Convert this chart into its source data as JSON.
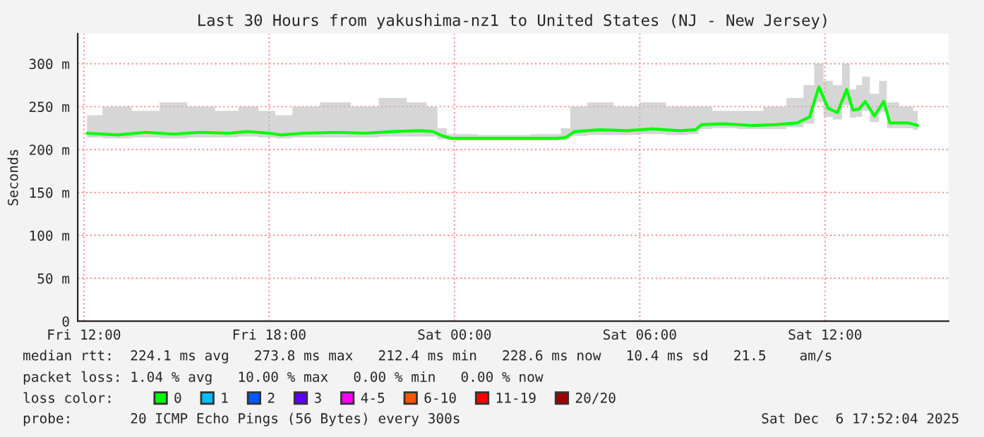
{
  "chart_data": {
    "type": "line",
    "title": "Last 30 Hours from yakushima-nz1 to United States (NJ - New Jersey)",
    "ylabel": "Seconds",
    "x": [
      "2025-12-05T12:06",
      "2025-12-05T13:06",
      "2025-12-05T14:00",
      "2025-12-05T14:54",
      "2025-12-05T15:48",
      "2025-12-05T16:42",
      "2025-12-05T17:18",
      "2025-12-05T18:00",
      "2025-12-05T18:24",
      "2025-12-05T19:06",
      "2025-12-05T20:12",
      "2025-12-05T21:06",
      "2025-12-05T22:00",
      "2025-12-05T22:54",
      "2025-12-05T23:18",
      "2025-12-05T23:36",
      "2025-12-05T23:54",
      "2025-12-06T01:36",
      "2025-12-06T03:18",
      "2025-12-06T03:36",
      "2025-12-06T03:54",
      "2025-12-06T04:42",
      "2025-12-06T05:36",
      "2025-12-06T06:24",
      "2025-12-06T07:18",
      "2025-12-06T07:48",
      "2025-12-06T08:00",
      "2025-12-06T08:42",
      "2025-12-06T09:36",
      "2025-12-06T10:24",
      "2025-12-06T11:06",
      "2025-12-06T11:30",
      "2025-12-06T11:48",
      "2025-12-06T12:06",
      "2025-12-06T12:24",
      "2025-12-06T12:42",
      "2025-12-06T12:54",
      "2025-12-06T13:06",
      "2025-12-06T13:18",
      "2025-12-06T13:36",
      "2025-12-06T13:54",
      "2025-12-06T14:06",
      "2025-12-06T14:42",
      "2025-12-06T15:00"
    ],
    "series": [
      {
        "name": "0",
        "color": "#00ff00",
        "values": [
          219,
          217,
          220,
          218,
          220,
          219,
          221,
          219,
          217,
          219,
          220,
          219,
          221,
          222,
          221,
          216,
          213,
          213,
          213,
          214,
          221,
          223,
          222,
          224,
          222,
          223,
          229,
          230,
          228,
          229,
          231,
          238,
          273,
          248,
          243,
          270,
          246,
          247,
          256,
          239,
          256,
          231,
          231,
          228
        ],
        "lower": [
          214,
          213,
          214,
          213,
          214,
          214,
          215,
          214,
          213,
          214,
          214,
          214,
          215,
          215,
          215,
          212,
          211,
          211,
          211,
          212,
          216,
          217,
          217,
          218,
          217,
          218,
          224,
          225,
          224,
          224,
          226,
          230,
          255,
          238,
          235,
          252,
          237,
          238,
          245,
          232,
          244,
          225,
          225,
          223
        ],
        "upper": [
          240,
          250,
          245,
          255,
          250,
          245,
          250,
          245,
          240,
          250,
          255,
          250,
          260,
          255,
          250,
          225,
          218,
          217,
          218,
          225,
          250,
          255,
          250,
          255,
          250,
          250,
          250,
          245,
          245,
          250,
          260,
          275,
          300,
          280,
          275,
          300,
          270,
          275,
          285,
          265,
          280,
          255,
          250,
          245
        ]
      },
      {
        "name": "1",
        "color": "#00bbff",
        "values": [
          null,
          null,
          null,
          null,
          null,
          null,
          null,
          null,
          null,
          null,
          null,
          null,
          null,
          null,
          null,
          null,
          null,
          null,
          null,
          null,
          null,
          null,
          null,
          null,
          null,
          null,
          null,
          null,
          null,
          null,
          null,
          null,
          null,
          null,
          null,
          null,
          null,
          null,
          null,
          null,
          null,
          null,
          null,
          null
        ]
      },
      {
        "name": "2",
        "color": "#0059ff",
        "values": [
          null,
          null,
          null,
          null,
          null,
          null,
          null,
          null,
          null,
          null,
          null,
          null,
          null,
          null,
          null,
          null,
          null,
          null,
          null,
          null,
          null,
          null,
          null,
          null,
          null,
          null,
          null,
          null,
          null,
          null,
          null,
          null,
          null,
          null,
          null,
          null,
          null,
          null,
          null,
          null,
          null,
          null,
          null,
          null
        ]
      },
      {
        "name": "3",
        "color": "#5e00ff",
        "values": [
          null,
          null,
          null,
          null,
          null,
          null,
          null,
          null,
          null,
          null,
          null,
          null,
          null,
          null,
          null,
          null,
          null,
          null,
          null,
          null,
          null,
          null,
          null,
          null,
          null,
          null,
          null,
          null,
          null,
          null,
          null,
          null,
          null,
          null,
          null,
          null,
          null,
          null,
          null,
          null,
          null,
          null,
          null,
          null
        ]
      },
      {
        "name": "4-5",
        "color": "#ff00ff",
        "values": [
          null,
          null,
          null,
          null,
          null,
          null,
          null,
          null,
          null,
          null,
          null,
          null,
          null,
          null,
          null,
          null,
          null,
          null,
          null,
          null,
          null,
          null,
          null,
          null,
          null,
          null,
          null,
          null,
          null,
          null,
          null,
          null,
          null,
          null,
          null,
          null,
          null,
          null,
          null,
          null,
          null,
          null,
          null,
          null
        ]
      },
      {
        "name": "6-10",
        "color": "#ff5500",
        "values": [
          null,
          null,
          null,
          null,
          null,
          null,
          null,
          null,
          null,
          null,
          null,
          null,
          null,
          null,
          null,
          null,
          null,
          null,
          null,
          null,
          null,
          null,
          null,
          null,
          null,
          null,
          null,
          null,
          null,
          null,
          null,
          null,
          null,
          null,
          null,
          null,
          null,
          null,
          null,
          null,
          null,
          null,
          null,
          null
        ]
      },
      {
        "name": "11-19",
        "color": "#ff0000",
        "values": [
          null,
          null,
          null,
          null,
          null,
          null,
          null,
          null,
          null,
          null,
          null,
          null,
          null,
          null,
          null,
          null,
          null,
          null,
          null,
          null,
          null,
          null,
          null,
          null,
          null,
          null,
          null,
          null,
          null,
          null,
          null,
          null,
          null,
          null,
          null,
          null,
          null,
          null,
          null,
          null,
          null,
          null,
          null,
          null
        ]
      },
      {
        "name": "20/20",
        "color": "#a10000",
        "values": [
          null,
          null,
          null,
          null,
          null,
          null,
          null,
          null,
          null,
          null,
          null,
          null,
          null,
          null,
          null,
          null,
          null,
          null,
          null,
          null,
          null,
          null,
          null,
          null,
          null,
          null,
          null,
          null,
          null,
          null,
          null,
          null,
          null,
          null,
          null,
          null,
          null,
          null,
          null,
          null,
          null,
          null,
          null,
          null
        ]
      }
    ],
    "legend_title": "loss color:",
    "legend": "bottom",
    "xlim": [
      "2025-12-05T11:48",
      "2025-12-06T16:00"
    ],
    "xticks": [
      {
        "value": "2025-12-05T12:00",
        "label": "Fri 12:00"
      },
      {
        "value": "2025-12-05T18:00",
        "label": "Fri 18:00"
      },
      {
        "value": "2025-12-06T00:00",
        "label": "Sat 00:00"
      },
      {
        "value": "2025-12-06T06:00",
        "label": "Sat 06:00"
      },
      {
        "value": "2025-12-06T12:00",
        "label": "Sat 12:00"
      }
    ],
    "ylim": [
      0,
      335
    ],
    "yticks": [
      0,
      {
        "value": 50,
        "label": "50 m"
      },
      {
        "value": 100,
        "label": "100 m"
      },
      {
        "value": 150,
        "label": "150 m"
      },
      {
        "value": 200,
        "label": "200 m"
      },
      {
        "value": 250,
        "label": "250 m"
      },
      {
        "value": 300,
        "label": "300 m"
      }
    ],
    "grid": true,
    "annotations": [
      "median rtt:  224.1 ms avg   273.8 ms max   212.4 ms min   228.6 ms now   10.4 ms sd   21.5    am/s",
      "packet loss: 1.04 % avg   10.00 % max   0.00 % min   0.00 % now",
      "probe:       20 ICMP Echo Pings (56 Bytes) every 300s",
      "Sat Dec  6 17:52:04 2025"
    ]
  }
}
